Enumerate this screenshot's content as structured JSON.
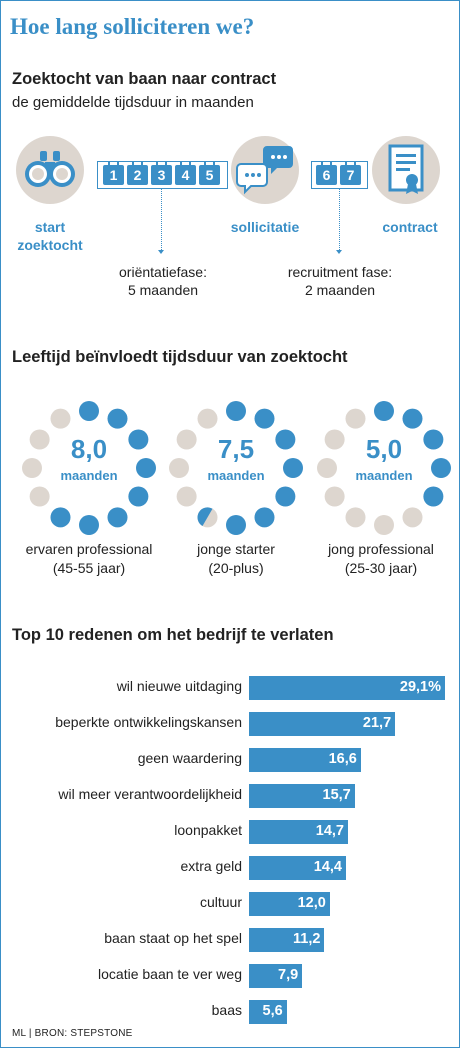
{
  "title": "Hoe lang solliciteren we?",
  "section1": {
    "heading": "Zoektocht van baan naar contract",
    "subheading": "de gemiddelde tijdsduur in maanden",
    "steps": [
      {
        "label_line1": "start",
        "label_line2": "zoektocht",
        "icon": "binoculars-icon"
      },
      {
        "label_line1": "sollicitatie",
        "label_line2": "",
        "icon": "speech-bubbles-icon"
      },
      {
        "label_line1": "contract",
        "label_line2": "",
        "icon": "certificate-icon"
      }
    ],
    "months_phase1": [
      "1",
      "2",
      "3",
      "4",
      "5"
    ],
    "months_phase2": [
      "6",
      "7"
    ],
    "phase1_line1": "oriëntatiefase:",
    "phase1_line2": "5 maanden",
    "phase2_line1": "recruitment fase:",
    "phase2_line2": "2 maanden",
    "colors": {
      "accent": "#3a8fc7",
      "icon_bg": "#ddd6cf"
    }
  },
  "section2": {
    "heading": "Leeftijd beïnvloedt tijdsduur van zoektocht",
    "unit": "maanden",
    "groups": [
      {
        "value": "8,0",
        "months": 8.0,
        "label_line1": "ervaren professional",
        "label_line2": "(45-55 jaar)"
      },
      {
        "value": "7,5",
        "months": 7.5,
        "label_line1": "jonge starter",
        "label_line2": "(20-plus)"
      },
      {
        "value": "5,0",
        "months": 5.0,
        "label_line1": "jong professional",
        "label_line2": "(25-30 jaar)"
      }
    ],
    "dots_total": 12,
    "colors": {
      "filled": "#3a8fc7",
      "empty": "#ddd6cf"
    }
  },
  "section3": {
    "heading": "Top 10 redenen om het bedrijf te verlaten"
  },
  "chart_data": {
    "type": "bar",
    "orientation": "horizontal",
    "title": "Top 10 redenen om het bedrijf te verlaten",
    "categories": [
      "wil nieuwe uitdaging",
      "beperkte ontwikkelingskansen",
      "geen waardering",
      "wil meer verantwoordelijkheid",
      "loonpakket",
      "extra geld",
      "cultuur",
      "baan staat op het spel",
      "locatie baan te ver weg",
      "baas"
    ],
    "values": [
      29.1,
      21.7,
      16.6,
      15.7,
      14.7,
      14.4,
      12.0,
      11.2,
      7.9,
      5.6
    ],
    "value_labels": [
      "29,1%",
      "21,7",
      "16,6",
      "15,7",
      "14,7",
      "14,4",
      "12,0",
      "11,2",
      "7,9",
      "5,6"
    ],
    "xlim": [
      0,
      29.1
    ],
    "grid": false,
    "bar_color": "#3a8fc7"
  },
  "source": "ML | BRON: STEPSTONE"
}
